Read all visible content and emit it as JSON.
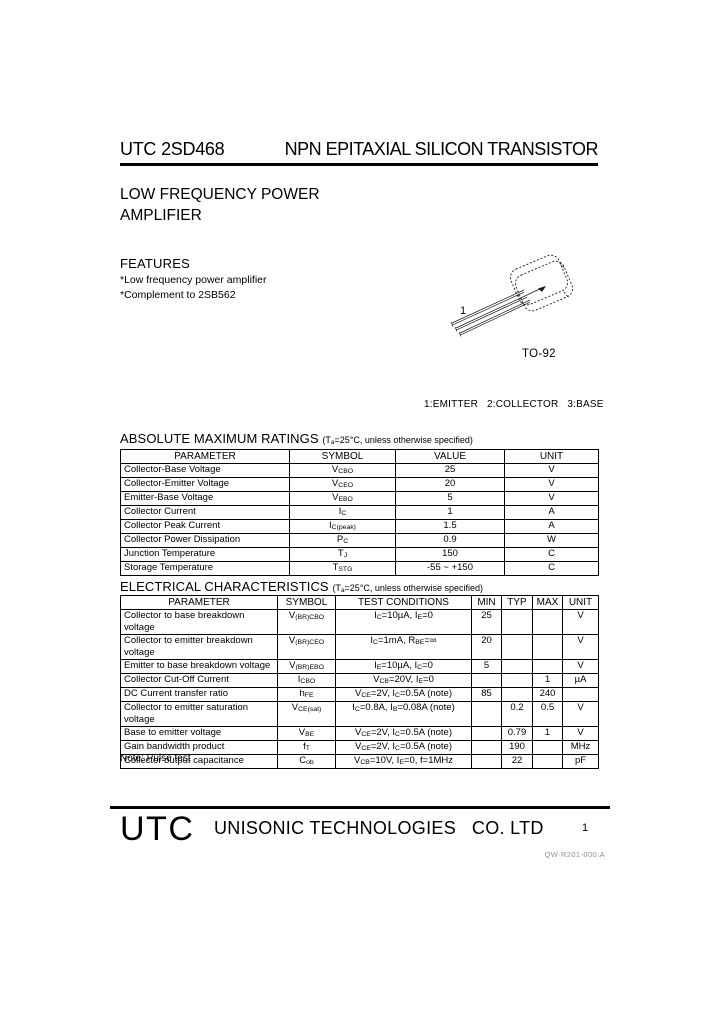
{
  "colors": {
    "text": "#000000",
    "background": "#ffffff",
    "doc_code_gray": "#8f8f8f"
  },
  "header": {
    "brand": "UTC",
    "part_number": "2SD468",
    "title": "NPN EPITAXIAL SILICON TRANSISTOR"
  },
  "description": "LOW FREQUENCY POWER\nAMPLIFIER",
  "features": {
    "heading": "FEATURES",
    "items": [
      "*Low frequency power amplifier",
      "*Complement to 2SB562"
    ]
  },
  "package": {
    "name": "TO-92",
    "pin1_label": "1",
    "pinout": "1:EMITTER   2:COLLECTOR   3:BASE"
  },
  "absolute_maximum_ratings": {
    "heading": "ABSOLUTE MAXIMUM RATINGS",
    "condition": "(T~a~=25°C, unless otherwise specified)",
    "columns": [
      "PARAMETER",
      "SYMBOL",
      "VALUE",
      "UNIT"
    ],
    "rows": [
      {
        "parameter": "Collector-Base Voltage",
        "symbol": "V~CBO~",
        "value": "25",
        "unit": "V"
      },
      {
        "parameter": "Collector-Emitter Voltage",
        "symbol": "V~CEO~",
        "value": "20",
        "unit": "V"
      },
      {
        "parameter": "Emitter-Base Voltage",
        "symbol": "V~EBO~",
        "value": "5",
        "unit": "V"
      },
      {
        "parameter": "Collector Current",
        "symbol": "I~C~",
        "value": "1",
        "unit": "A"
      },
      {
        "parameter": "Collector Peak Current",
        "symbol": "I~C(peak)~",
        "value": "1.5",
        "unit": "A"
      },
      {
        "parameter": "Collector Power Dissipation",
        "symbol": "P~C~",
        "value": "0.9",
        "unit": "W"
      },
      {
        "parameter": "Junction Temperature",
        "symbol": "T~J~",
        "value": "150",
        "unit": "C"
      },
      {
        "parameter": "Storage Temperature",
        "symbol": "T~STG~",
        "value": "-55 ~ +150",
        "unit": "C"
      }
    ]
  },
  "electrical_characteristics": {
    "heading": "ELECTRICAL CHARACTERISTICS",
    "condition": "(T~a~=25°C, unless otherwise specified)",
    "columns": [
      "PARAMETER",
      "SYMBOL",
      "TEST CONDITIONS",
      "MIN",
      "TYP",
      "MAX",
      "UNIT"
    ],
    "rows": [
      {
        "parameter": "Collector to base breakdown voltage",
        "symbol": "V~(BR)CBO~",
        "conditions": "I~C~=10µA, I~E~=0",
        "min": "25",
        "typ": "",
        "max": "",
        "unit": "V"
      },
      {
        "parameter": "Collector to emitter breakdown\nvoltage",
        "symbol": "V~(BR)CEO~",
        "conditions": "I~C~=1mA, R~BE~=∞",
        "min": "20",
        "typ": "",
        "max": "",
        "unit": "V"
      },
      {
        "parameter": "Emitter to base breakdown voltage",
        "symbol": "V~(BR)EBO~",
        "conditions": "I~E~=10µA, I~C~=0",
        "min": "5",
        "typ": "",
        "max": "",
        "unit": "V"
      },
      {
        "parameter": "Collector Cut-Off Current",
        "symbol": "I~CBO~",
        "conditions": "V~CB~=20V, I~E~=0",
        "min": "",
        "typ": "",
        "max": "1",
        "unit": "µA"
      },
      {
        "parameter": "DC Current transfer ratio",
        "symbol": "h~FE~",
        "conditions": "V~CE~=2V, I~C~=0.5A (note)",
        "min": "85",
        "typ": "",
        "max": "240",
        "unit": ""
      },
      {
        "parameter": "Collector to emitter saturation\nvoltage",
        "symbol": "V~CE(sat)~",
        "conditions": "I~C~=0.8A, I~B~=0.08A (note)",
        "min": "",
        "typ": "0.2",
        "max": "0.5",
        "unit": "V"
      },
      {
        "parameter": "Base to emitter voltage",
        "symbol": "V~BE~",
        "conditions": "V~CE~=2V, I~C~=0.5A (note)",
        "min": "",
        "typ": "0.79",
        "max": "1",
        "unit": "V"
      },
      {
        "parameter": "Gain bandwidth product",
        "symbol": "f~T~",
        "conditions": "V~CE~=2V, I~C~=0.5A (note)",
        "min": "",
        "typ": "190",
        "max": "",
        "unit": "MHz"
      },
      {
        "parameter": "Collector output capacitance",
        "symbol": "C~ob~",
        "conditions": "V~CB~=10V, I~E~=0, f=1MHz",
        "min": "",
        "typ": "22",
        "max": "",
        "unit": "pF"
      }
    ]
  },
  "note": "Note: Pulse test",
  "footer": {
    "logo": "UTC",
    "company": "UNISONIC TECHNOLOGIES   CO. LTD",
    "page_number": "1",
    "doc_code": "QW-R201-000.A"
  }
}
